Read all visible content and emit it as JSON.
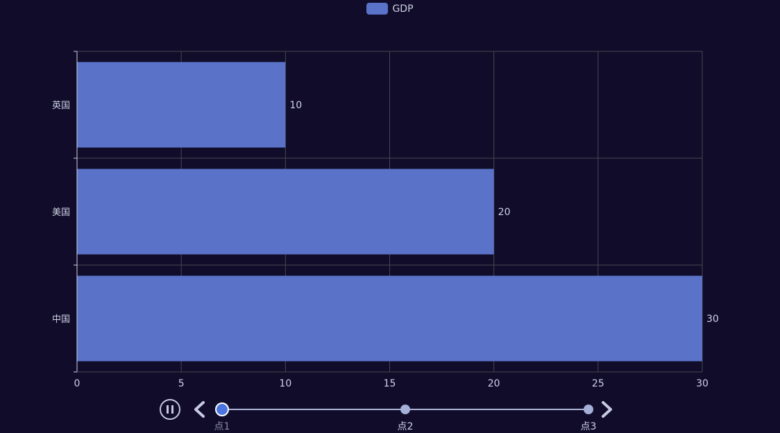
{
  "chart_data": {
    "type": "bar",
    "orientation": "horizontal",
    "categories": [
      "英国",
      "美国",
      "中国"
    ],
    "series": [
      {
        "name": "GDP",
        "values": [
          10,
          20,
          30
        ],
        "color": "#5a73c8"
      }
    ],
    "xlim": [
      0,
      30
    ],
    "x_ticks": [
      "0",
      "5",
      "10",
      "15",
      "20",
      "25",
      "30"
    ],
    "data_labels": [
      "10",
      "20",
      "30"
    ],
    "grid": true,
    "legend_placement": "top-center"
  },
  "timeline": {
    "play_state": "playing",
    "points": [
      "点1",
      "点2",
      "点3"
    ],
    "current_index": 0,
    "colors": {
      "line": "#b0b7d8",
      "point": "#a4b0d8",
      "active": "#4a75e0",
      "button": "#c7cae0"
    }
  },
  "theme": {
    "background": "#100c2a",
    "grid": "#484753",
    "axis_text": "#cfd2e6"
  }
}
